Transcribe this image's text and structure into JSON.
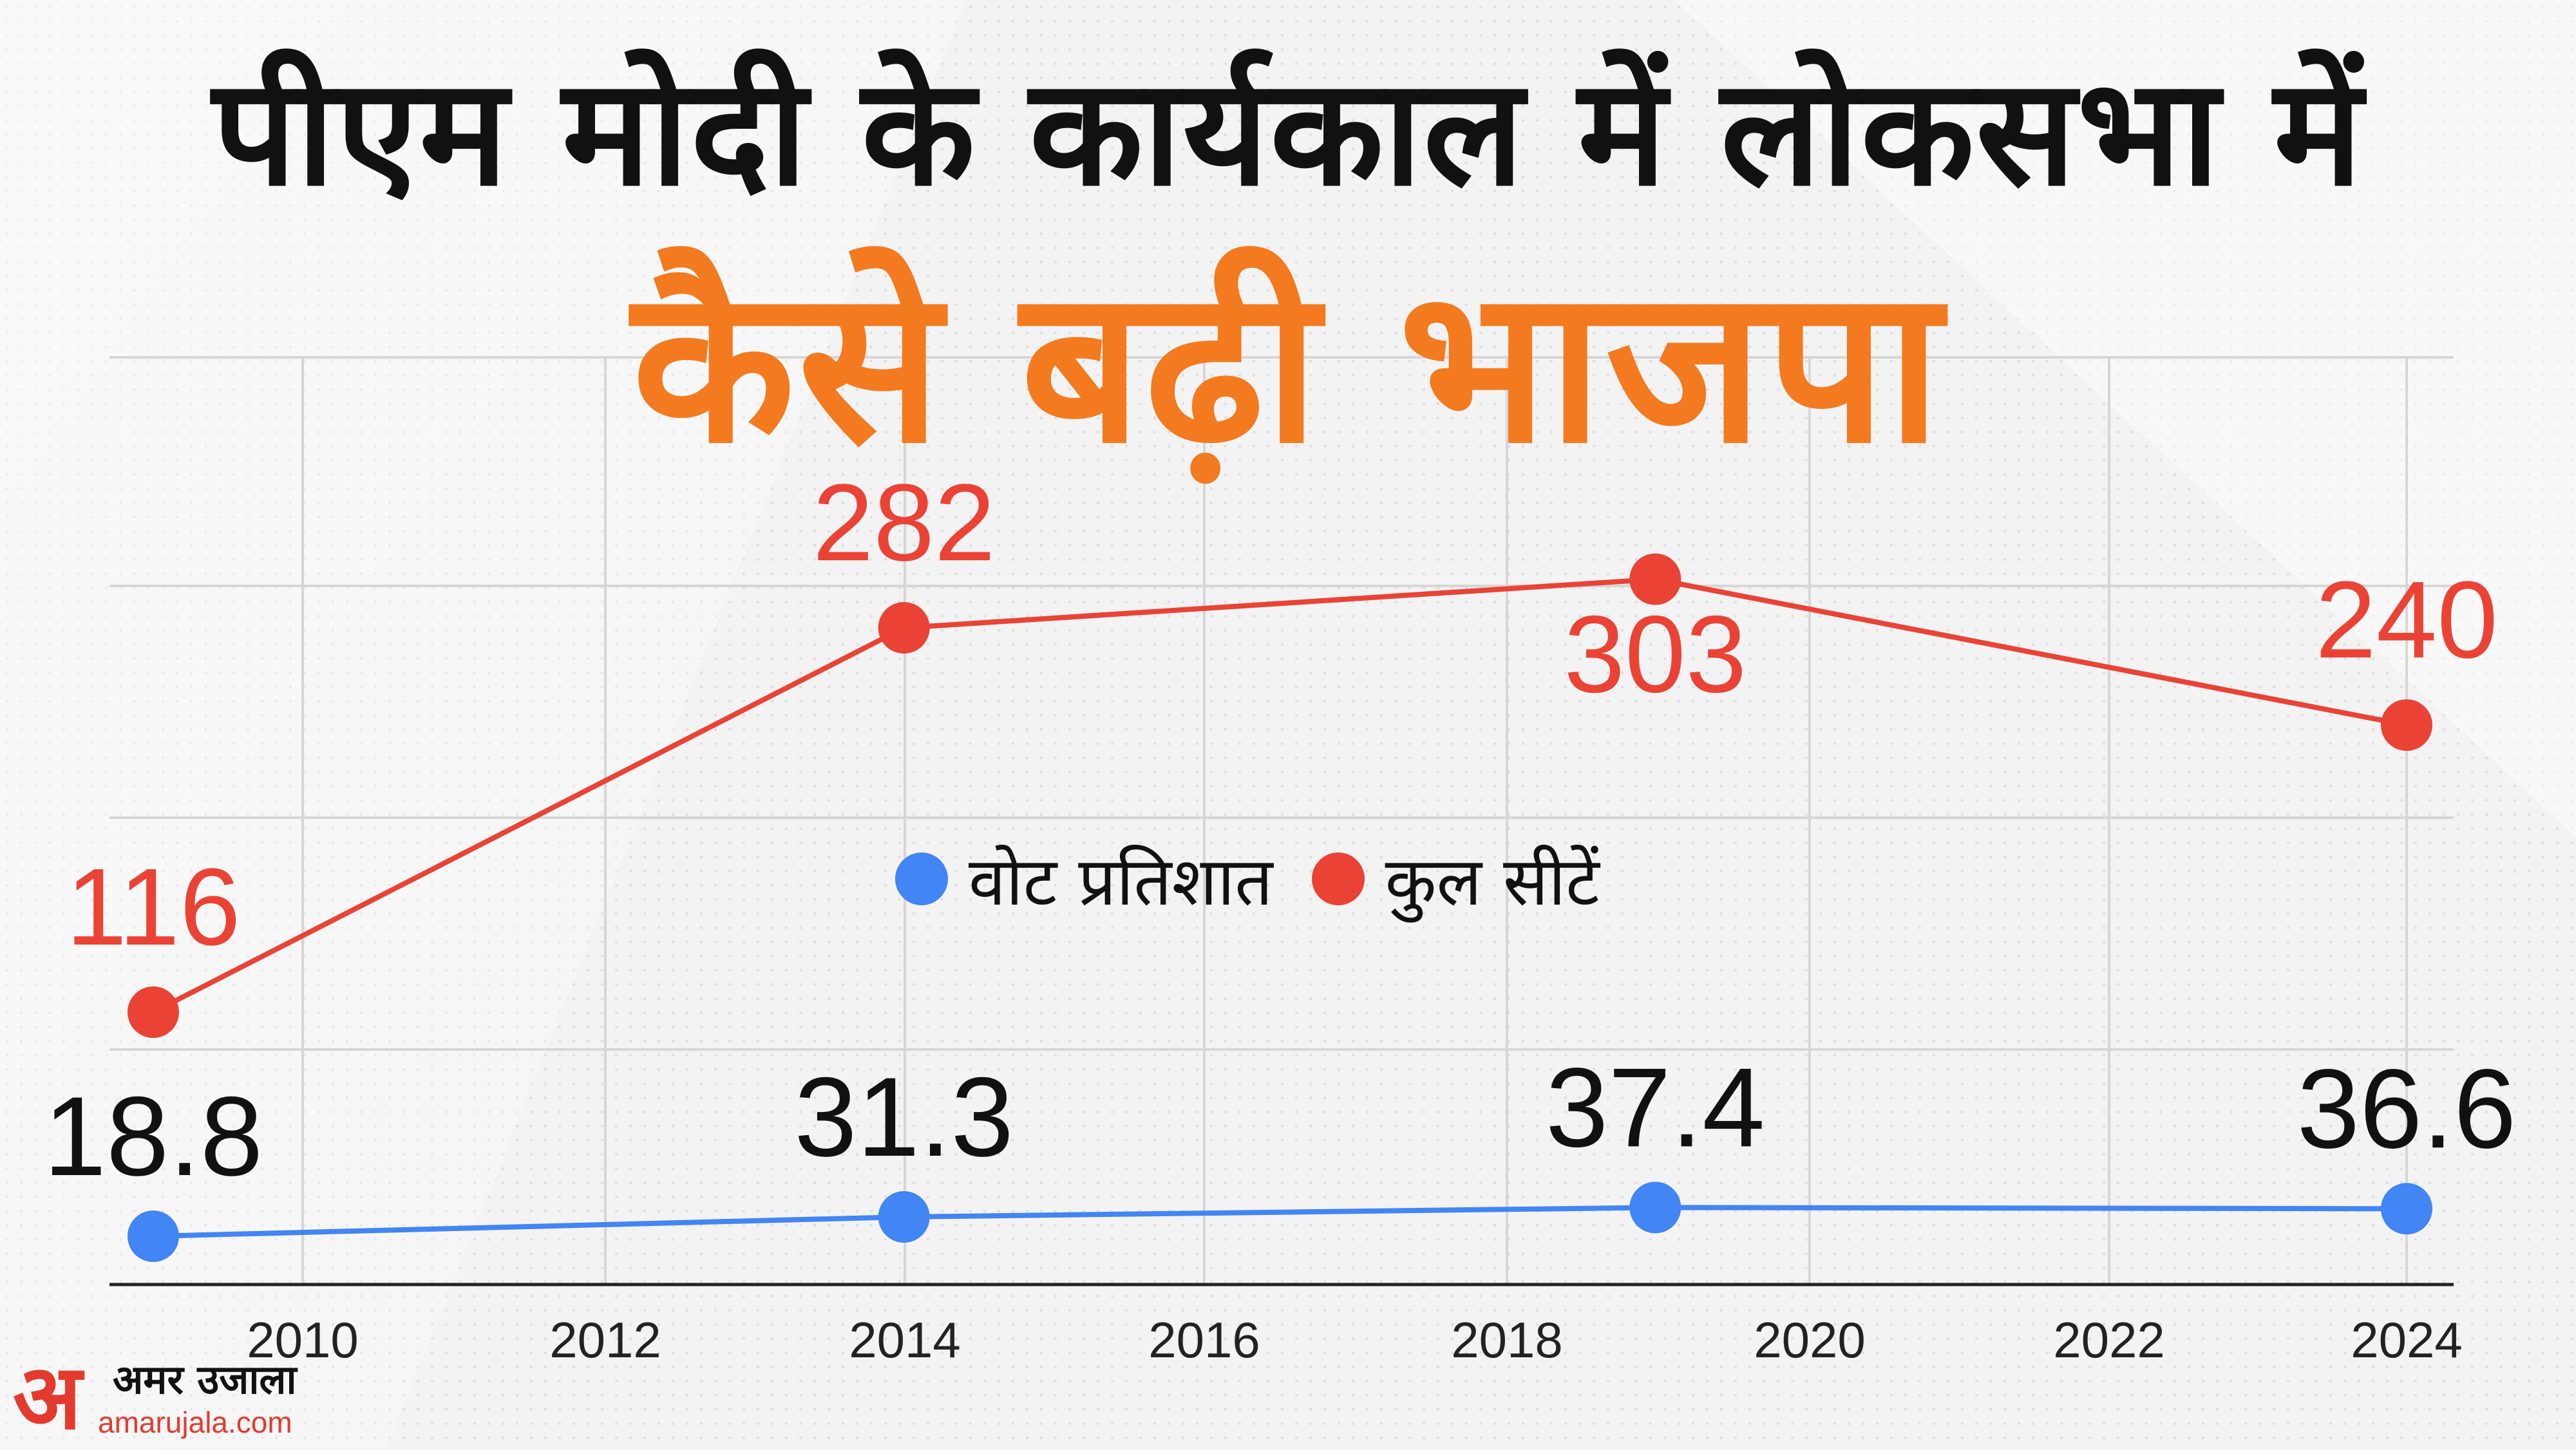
{
  "title": {
    "line1": "पीएम मोदी के कार्यकाल में लोकसभा में",
    "line2": "कैसे बढ़ी भाजपा"
  },
  "legend": [
    {
      "label": "वोट प्रतिशात",
      "color": "#4285f4"
    },
    {
      "label": "कुल सीटें",
      "color": "#ea4335"
    }
  ],
  "logo": {
    "mark": "अ",
    "name": "अमर उजाला",
    "url": "amarujala.com"
  },
  "colors": {
    "title_accent": "#f47a1f",
    "seats": "#ea4335",
    "votes": "#4285f4",
    "labels_dark": "#111111"
  },
  "chart_data": {
    "type": "line",
    "title": "पीएम मोदी के कार्यकाल में लोकसभा में कैसे बढ़ी भाजपा",
    "x": [
      2009,
      2014,
      2019,
      2024
    ],
    "xticks": [
      "2010",
      "2012",
      "2014",
      "2016",
      "2018",
      "2020",
      "2022",
      "2024"
    ],
    "xlim": [
      2009,
      2024
    ],
    "series": [
      {
        "name": "कुल सीटें",
        "color": "#ea4335",
        "values": [
          116,
          282,
          303,
          240
        ],
        "labels": [
          "116",
          "282",
          "303",
          "240"
        ],
        "label_positions": [
          "above",
          "above",
          "below",
          "above"
        ]
      },
      {
        "name": "वोट प्रतिशात",
        "color": "#4285f4",
        "values": [
          18.8,
          31.3,
          37.4,
          36.6
        ],
        "labels": [
          "18.8",
          "31.3",
          "37.4",
          "36.6"
        ],
        "label_positions": [
          "above",
          "above",
          "above",
          "above"
        ]
      }
    ],
    "grid": true,
    "legend_position": "center"
  }
}
